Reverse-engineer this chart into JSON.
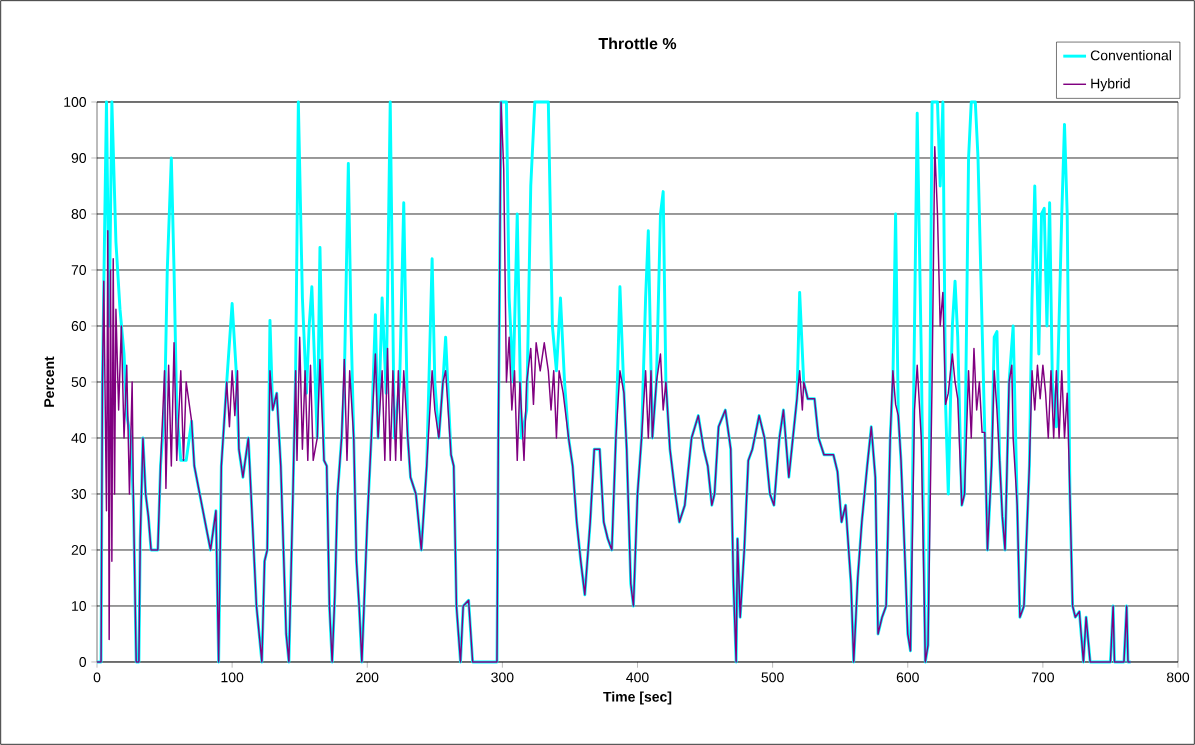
{
  "chart_data": {
    "type": "line",
    "title": "Throttle %",
    "xlabel": "Time [sec]",
    "ylabel": "Percent",
    "xlim": [
      0,
      800
    ],
    "xticks": [
      0,
      100,
      200,
      300,
      400,
      500,
      600,
      700,
      800
    ],
    "ylim": [
      0,
      100
    ],
    "yticks": [
      0,
      10,
      20,
      30,
      40,
      50,
      60,
      70,
      80,
      90,
      100
    ],
    "grid": "y",
    "legend": "top right",
    "marker": "none",
    "line_style": "solid",
    "series": [
      {
        "name": "Conventional",
        "color": "#00ffff",
        "x": [
          0,
          3,
          4,
          7,
          9,
          11,
          14,
          17,
          20,
          22,
          25,
          27,
          29,
          31,
          32,
          34,
          36,
          38,
          40,
          45,
          47,
          50,
          52,
          55,
          57,
          59,
          62,
          66,
          70,
          72,
          76,
          80,
          84,
          88,
          90,
          92,
          96,
          100,
          103,
          105,
          108,
          112,
          115,
          118,
          120,
          122,
          124,
          126,
          128,
          130,
          133,
          136,
          140,
          142,
          145,
          147,
          149,
          152,
          155,
          157,
          159,
          163,
          165,
          168,
          170,
          172,
          174,
          176,
          178,
          181,
          183,
          186,
          188,
          190,
          192,
          194,
          196,
          200,
          203,
          206,
          208,
          211,
          214,
          217,
          220,
          224,
          227,
          230,
          232,
          236,
          240,
          244,
          248,
          250,
          253,
          256,
          258,
          262,
          264,
          266,
          269,
          271,
          275,
          278,
          290,
          296,
          297,
          299,
          303,
          305,
          308,
          311,
          314,
          318,
          321,
          324,
          330,
          334,
          337,
          340,
          343,
          346,
          349,
          352,
          355,
          358,
          361,
          365,
          368,
          372,
          375,
          378,
          381,
          384,
          387,
          390,
          392,
          395,
          397,
          400,
          403,
          406,
          408,
          411,
          414,
          417,
          419,
          421,
          424,
          428,
          431,
          435,
          440,
          445,
          449,
          452,
          455,
          457,
          460,
          465,
          469,
          471,
          473,
          474,
          476,
          479,
          482,
          485,
          490,
          494,
          498,
          501,
          505,
          508,
          512,
          515,
          518,
          520,
          523,
          526,
          531,
          534,
          538,
          545,
          548,
          551,
          554,
          558,
          560,
          563,
          566,
          570,
          573,
          576,
          578,
          581,
          584,
          587,
          589,
          591,
          593,
          595,
          598,
          600,
          602,
          605,
          607,
          610,
          613,
          615,
          618,
          622,
          624,
          626,
          628,
          630,
          633,
          635,
          637,
          640,
          642,
          645,
          647,
          650,
          652,
          655,
          657,
          659,
          662,
          664,
          666,
          668,
          670,
          672,
          675,
          678,
          681,
          683,
          686,
          690,
          692,
          694,
          697,
          699,
          701,
          703,
          705,
          707,
          710,
          714,
          716,
          718,
          720,
          722,
          724,
          727,
          730,
          732,
          735,
          750,
          752,
          753,
          760,
          762,
          763,
          765
        ],
        "values": [
          0,
          0,
          50,
          100,
          60,
          100,
          75,
          63,
          55,
          44,
          40,
          28,
          0,
          0,
          22,
          40,
          30,
          26,
          20,
          20,
          35,
          45,
          70,
          90,
          70,
          45,
          36,
          36,
          43,
          35,
          30,
          25,
          20,
          27,
          0,
          35,
          50,
          64,
          52,
          38,
          33,
          40,
          25,
          10,
          5,
          0,
          18,
          20,
          61,
          45,
          48,
          35,
          5,
          0,
          30,
          52,
          100,
          65,
          48,
          60,
          67,
          40,
          74,
          36,
          35,
          10,
          0,
          12,
          30,
          40,
          50,
          89,
          60,
          40,
          18,
          10,
          0,
          25,
          40,
          62,
          40,
          65,
          48,
          100,
          40,
          50,
          82,
          40,
          33,
          30,
          20,
          35,
          72,
          50,
          40,
          50,
          58,
          37,
          35,
          10,
          0,
          10,
          11,
          0,
          0,
          0,
          40,
          100,
          100,
          65,
          50,
          80,
          40,
          45,
          85,
          100,
          100,
          100,
          60,
          52,
          65,
          50,
          40,
          35,
          25,
          18,
          12,
          25,
          38,
          38,
          25,
          22,
          20,
          40,
          67,
          48,
          38,
          14,
          10,
          30,
          40,
          65,
          77,
          40,
          50,
          80,
          84,
          50,
          38,
          30,
          25,
          28,
          40,
          44,
          38,
          35,
          28,
          30,
          42,
          45,
          38,
          14,
          0,
          22,
          8,
          20,
          36,
          38,
          44,
          40,
          30,
          28,
          40,
          45,
          33,
          40,
          47,
          66,
          50,
          47,
          47,
          40,
          37,
          37,
          34,
          25,
          28,
          14,
          0,
          15,
          25,
          35,
          42,
          33,
          5,
          8,
          10,
          40,
          50,
          80,
          44,
          36,
          18,
          5,
          2,
          60,
          98,
          55,
          0,
          3,
          100,
          100,
          85,
          100,
          46,
          30,
          60,
          68,
          58,
          28,
          30,
          90,
          100,
          100,
          90,
          60,
          41,
          20,
          35,
          58,
          59,
          36,
          26,
          20,
          50,
          60,
          28,
          8,
          10,
          35,
          65,
          85,
          55,
          80,
          81,
          60,
          82,
          50,
          42,
          80,
          96,
          80,
          30,
          10,
          8,
          9,
          0,
          8,
          0,
          0,
          10,
          0,
          0,
          10,
          0,
          0
        ]
      },
      {
        "name": "Hybrid",
        "color": "#800080",
        "x": [
          0,
          3,
          4,
          5,
          7,
          8,
          9,
          10,
          11,
          12,
          13,
          14,
          16,
          18,
          20,
          22,
          24,
          26,
          27,
          29,
          31,
          32,
          34,
          36,
          38,
          40,
          45,
          47,
          50,
          51,
          53,
          55,
          57,
          59,
          62,
          64,
          66,
          70,
          72,
          76,
          80,
          84,
          88,
          90,
          92,
          96,
          98,
          100,
          102,
          104,
          105,
          108,
          112,
          115,
          118,
          120,
          122,
          124,
          126,
          128,
          130,
          133,
          136,
          140,
          142,
          145,
          147,
          148,
          150,
          152,
          154,
          156,
          158,
          160,
          163,
          165,
          168,
          170,
          172,
          174,
          176,
          178,
          181,
          183,
          185,
          187,
          190,
          192,
          194,
          196,
          200,
          203,
          206,
          208,
          211,
          213,
          215,
          217,
          219,
          221,
          223,
          225,
          227,
          230,
          232,
          236,
          240,
          244,
          248,
          250,
          253,
          256,
          258,
          262,
          264,
          266,
          269,
          271,
          275,
          278,
          296,
          297,
          299,
          301,
          303,
          305,
          307,
          309,
          311,
          313,
          316,
          318,
          321,
          323,
          325,
          328,
          331,
          334,
          336,
          338,
          340,
          342,
          345,
          349,
          352,
          355,
          358,
          361,
          365,
          368,
          372,
          375,
          378,
          381,
          384,
          387,
          390,
          392,
          395,
          397,
          400,
          403,
          406,
          408,
          410,
          411,
          414,
          417,
          419,
          421,
          424,
          428,
          431,
          435,
          440,
          445,
          449,
          452,
          455,
          457,
          460,
          465,
          469,
          471,
          473,
          474,
          476,
          479,
          482,
          485,
          490,
          494,
          498,
          501,
          505,
          508,
          512,
          515,
          518,
          520,
          522,
          523,
          526,
          531,
          534,
          538,
          545,
          548,
          551,
          554,
          558,
          560,
          563,
          566,
          570,
          573,
          576,
          578,
          581,
          584,
          587,
          589,
          591,
          593,
          595,
          598,
          600,
          602,
          605,
          607,
          610,
          613,
          615,
          618,
          620,
          622,
          624,
          626,
          628,
          630,
          633,
          635,
          637,
          640,
          642,
          645,
          647,
          649,
          651,
          653,
          655,
          657,
          659,
          662,
          664,
          666,
          668,
          670,
          672,
          675,
          677,
          678,
          681,
          683,
          686,
          690,
          692,
          694,
          696,
          698,
          700,
          702,
          704,
          706,
          708,
          710,
          712,
          714,
          716,
          718,
          720,
          722,
          724,
          727,
          730,
          732,
          735,
          750,
          752,
          753,
          760,
          762,
          763,
          765
        ],
        "values": [
          0,
          0,
          50,
          68,
          27,
          77,
          4,
          70,
          18,
          72,
          30,
          63,
          45,
          60,
          40,
          53,
          30,
          50,
          28,
          0,
          0,
          22,
          40,
          30,
          26,
          20,
          20,
          35,
          52,
          31,
          53,
          35,
          57,
          36,
          52,
          36,
          50,
          43,
          35,
          30,
          25,
          20,
          27,
          0,
          35,
          50,
          42,
          52,
          44,
          52,
          38,
          33,
          40,
          25,
          10,
          5,
          0,
          18,
          20,
          52,
          45,
          48,
          35,
          5,
          0,
          30,
          52,
          36,
          58,
          38,
          52,
          36,
          53,
          36,
          40,
          54,
          36,
          35,
          10,
          0,
          12,
          30,
          40,
          54,
          36,
          52,
          40,
          18,
          10,
          0,
          25,
          40,
          55,
          40,
          52,
          36,
          56,
          36,
          52,
          36,
          52,
          36,
          52,
          40,
          33,
          30,
          20,
          35,
          52,
          45,
          40,
          50,
          52,
          37,
          35,
          10,
          0,
          10,
          11,
          0,
          0,
          40,
          100,
          88,
          50,
          58,
          45,
          52,
          36,
          50,
          36,
          50,
          56,
          46,
          57,
          52,
          57,
          52,
          45,
          52,
          40,
          52,
          48,
          40,
          35,
          25,
          18,
          12,
          25,
          38,
          38,
          25,
          22,
          20,
          40,
          52,
          48,
          38,
          14,
          10,
          30,
          40,
          52,
          40,
          52,
          40,
          50,
          55,
          45,
          50,
          38,
          30,
          25,
          28,
          40,
          44,
          38,
          35,
          28,
          30,
          42,
          45,
          38,
          14,
          0,
          22,
          8,
          20,
          36,
          38,
          44,
          40,
          30,
          28,
          40,
          45,
          33,
          40,
          47,
          52,
          45,
          50,
          47,
          47,
          40,
          37,
          37,
          34,
          25,
          28,
          14,
          0,
          15,
          25,
          35,
          42,
          33,
          5,
          8,
          10,
          40,
          52,
          46,
          44,
          36,
          18,
          5,
          2,
          45,
          53,
          40,
          0,
          3,
          50,
          92,
          80,
          60,
          66,
          46,
          48,
          55,
          50,
          47,
          28,
          30,
          52,
          40,
          56,
          45,
          50,
          41,
          41,
          20,
          35,
          52,
          45,
          36,
          26,
          20,
          50,
          53,
          40,
          28,
          8,
          10,
          35,
          52,
          45,
          53,
          47,
          53,
          48,
          40,
          52,
          40,
          52,
          40,
          52,
          40,
          48,
          30,
          10,
          8,
          9,
          0,
          8,
          0,
          0,
          10,
          0,
          0,
          10,
          0,
          0
        ]
      }
    ]
  }
}
